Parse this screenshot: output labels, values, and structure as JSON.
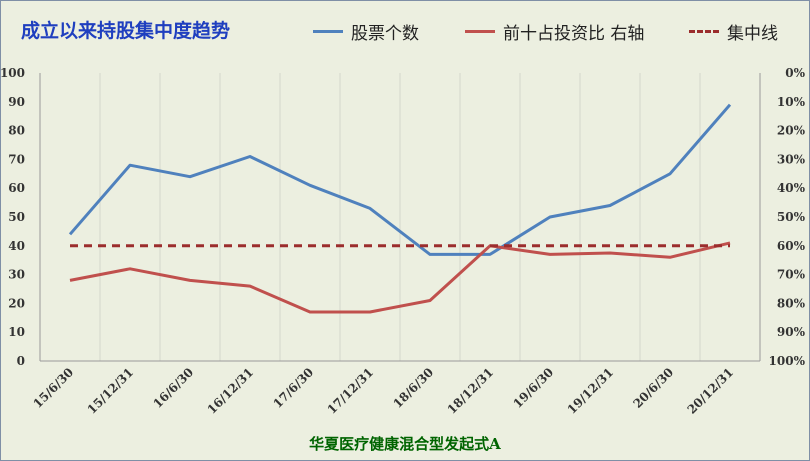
{
  "chart_data": {
    "type": "line",
    "title": "成立以来持股集中度趋势",
    "caption": "华夏医疗健康混合型发起式A",
    "categories": [
      "15/6/30",
      "15/12/31",
      "16/6/30",
      "16/12/31",
      "17/6/30",
      "17/12/31",
      "18/6/30",
      "18/12/31",
      "19/6/30",
      "19/12/31",
      "20/6/30",
      "20/12/31"
    ],
    "left_axis": {
      "min": 0,
      "max": 100,
      "step": 10,
      "ticks": [
        "0",
        "10",
        "20",
        "30",
        "40",
        "50",
        "60",
        "70",
        "80",
        "90",
        "100"
      ]
    },
    "right_axis": {
      "min": 0,
      "max": 100,
      "step": 10,
      "inverted": true,
      "ticks": [
        "0%",
        "10%",
        "20%",
        "30%",
        "40%",
        "50%",
        "60%",
        "70%",
        "80%",
        "90%",
        "100%"
      ]
    },
    "grid": "vertical",
    "legend_position": "top",
    "series": [
      {
        "name": "股票个数",
        "axis": "left",
        "color": "#4f81bd",
        "style": "solid",
        "values": [
          44,
          68,
          64,
          71,
          61,
          53,
          37,
          37,
          50,
          54,
          65,
          89
        ]
      },
      {
        "name": "前十占投资比 右轴",
        "axis": "right",
        "color": "#c0504d",
        "style": "solid",
        "values": [
          72,
          68,
          72,
          74,
          83,
          83,
          79,
          60,
          63,
          62.5,
          64,
          59
        ]
      },
      {
        "name": "集中线",
        "axis": "right",
        "color": "#9b2d2d",
        "style": "dashed",
        "values": [
          60,
          60,
          60,
          60,
          60,
          60,
          60,
          60,
          60,
          60,
          60,
          60
        ]
      }
    ]
  }
}
